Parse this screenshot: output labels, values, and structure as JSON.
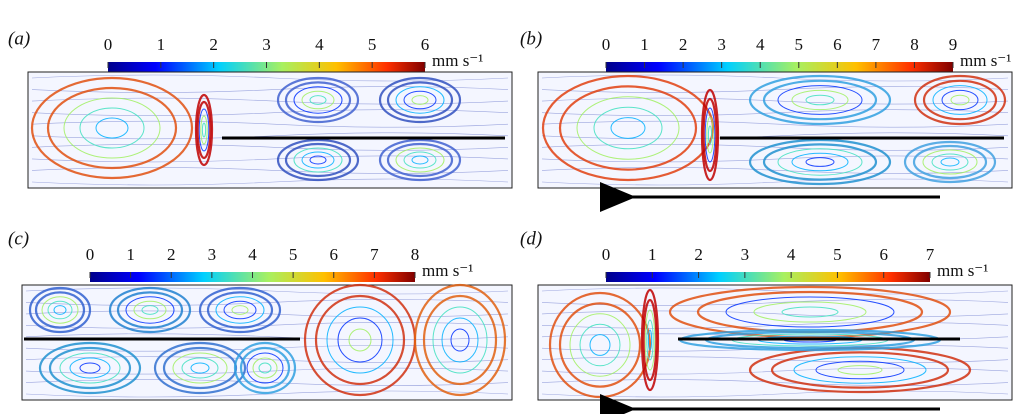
{
  "panels": [
    {
      "label": "(a)",
      "colorbar_ticks": [
        "0",
        "1",
        "2",
        "3",
        "4",
        "5",
        "6"
      ],
      "unit": "mm s⁻¹"
    },
    {
      "label": "(b)",
      "colorbar_ticks": [
        "0",
        "1",
        "2",
        "3",
        "4",
        "5",
        "6",
        "7",
        "8",
        "9"
      ],
      "unit": "mm s⁻¹"
    },
    {
      "label": "(c)",
      "colorbar_ticks": [
        "0",
        "1",
        "2",
        "3",
        "4",
        "5",
        "6",
        "7",
        "8"
      ],
      "unit": "mm s⁻¹"
    },
    {
      "label": "(d)",
      "colorbar_ticks": [
        "0",
        "1",
        "2",
        "3",
        "4",
        "5",
        "6",
        "7"
      ],
      "unit": "mm s⁻¹"
    }
  ]
}
